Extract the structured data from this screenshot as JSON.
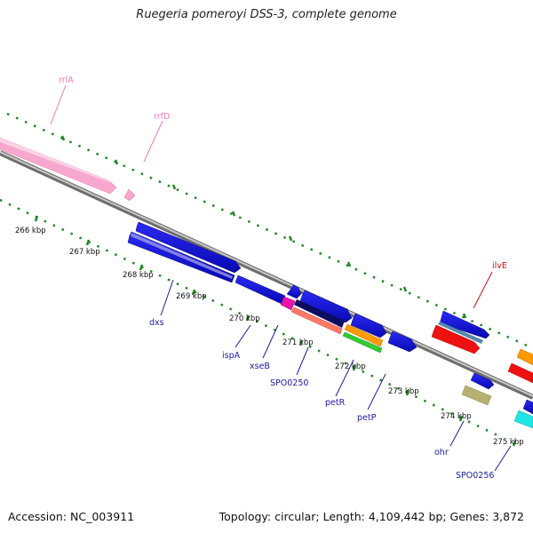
{
  "header": {
    "title": "Ruegeria pomeroyi DSS-3, complete genome"
  },
  "footer": {
    "accession": "Accession: NC_003911",
    "topology": "Topology: circular; Length: 4,109,442 bp; Genes: 3,872"
  },
  "scale": {
    "labels": [
      "266 kbp",
      "267 kbp",
      "268 kbp",
      "269 kbp",
      "270 kbp",
      "271 kbp",
      "272 kbp",
      "273 kbp",
      "274 kbp",
      "275 kbp"
    ]
  },
  "genes": {
    "rrlA": "rrlA",
    "rrfD": "rrfD",
    "ilvE": "ilvE",
    "dxs": "dxs",
    "ispA": "ispA",
    "xseB": "xseB",
    "SPO0250": "SPO0250",
    "petR": "petR",
    "petP": "petP",
    "ohr": "ohr",
    "SPO0256": "SPO0256"
  },
  "colors": {
    "rrna": "#f7a8cf",
    "cds": "#1010e0",
    "tick": "#228822",
    "backbone": "#8a8a8a",
    "red": "#ee1111",
    "orange": "#ff9900",
    "green": "#33cc33",
    "magenta": "#ee11aa",
    "olive": "#b8b070",
    "cyan": "#22e5e5",
    "salmon": "#ff7766",
    "steel": "#5588aa"
  }
}
